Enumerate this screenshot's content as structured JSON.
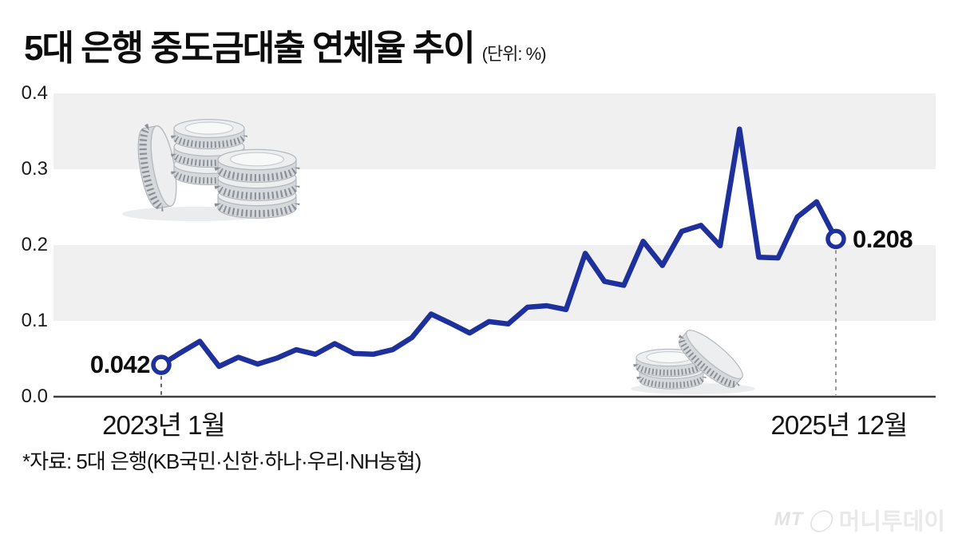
{
  "header": {
    "title": "5대 은행 중도금대출 연체율 추이",
    "unit": "(단위: %)"
  },
  "chart_data": {
    "type": "line",
    "title": "5대 은행 중도금대출 연체율 추이",
    "unit_label": "(단위: %)",
    "ylim": [
      0.0,
      0.4
    ],
    "ytick_labels": [
      "0.4",
      "0.3",
      "0.2",
      "0.1",
      "0.0"
    ],
    "x_start_label": "2023년 1월",
    "x_end_label": "2025년 12월",
    "start_annotation": "0.042",
    "end_annotation": "0.208",
    "line_color": "#1e309c",
    "band_color": "#f0f0f1",
    "marker_fill": "#ffffff",
    "months": [
      "2023-01",
      "2023-02",
      "2023-03",
      "2023-04",
      "2023-05",
      "2023-06",
      "2023-07",
      "2023-08",
      "2023-09",
      "2023-10",
      "2023-11",
      "2023-12",
      "2024-01",
      "2024-02",
      "2024-03",
      "2024-04",
      "2024-05",
      "2024-06",
      "2024-07",
      "2024-08",
      "2024-09",
      "2024-10",
      "2024-11",
      "2024-12",
      "2025-01",
      "2025-02",
      "2025-03",
      "2025-04",
      "2025-05",
      "2025-06",
      "2025-07",
      "2025-08",
      "2025-09",
      "2025-10",
      "2025-11",
      "2025-12"
    ],
    "values": [
      0.042,
      0.058,
      0.073,
      0.04,
      0.052,
      0.043,
      0.051,
      0.062,
      0.056,
      0.07,
      0.057,
      0.056,
      0.062,
      0.078,
      0.109,
      0.097,
      0.084,
      0.099,
      0.096,
      0.118,
      0.12,
      0.115,
      0.189,
      0.152,
      0.147,
      0.205,
      0.173,
      0.218,
      0.226,
      0.199,
      0.353,
      0.184,
      0.183,
      0.237,
      0.257,
      0.208
    ]
  },
  "footnote": "*자료: 5대 은행(KB국민·신한·하나·우리·NH농협)",
  "watermark": {
    "mt": "MT",
    "circle": "◯",
    "name": "머니투데이"
  }
}
